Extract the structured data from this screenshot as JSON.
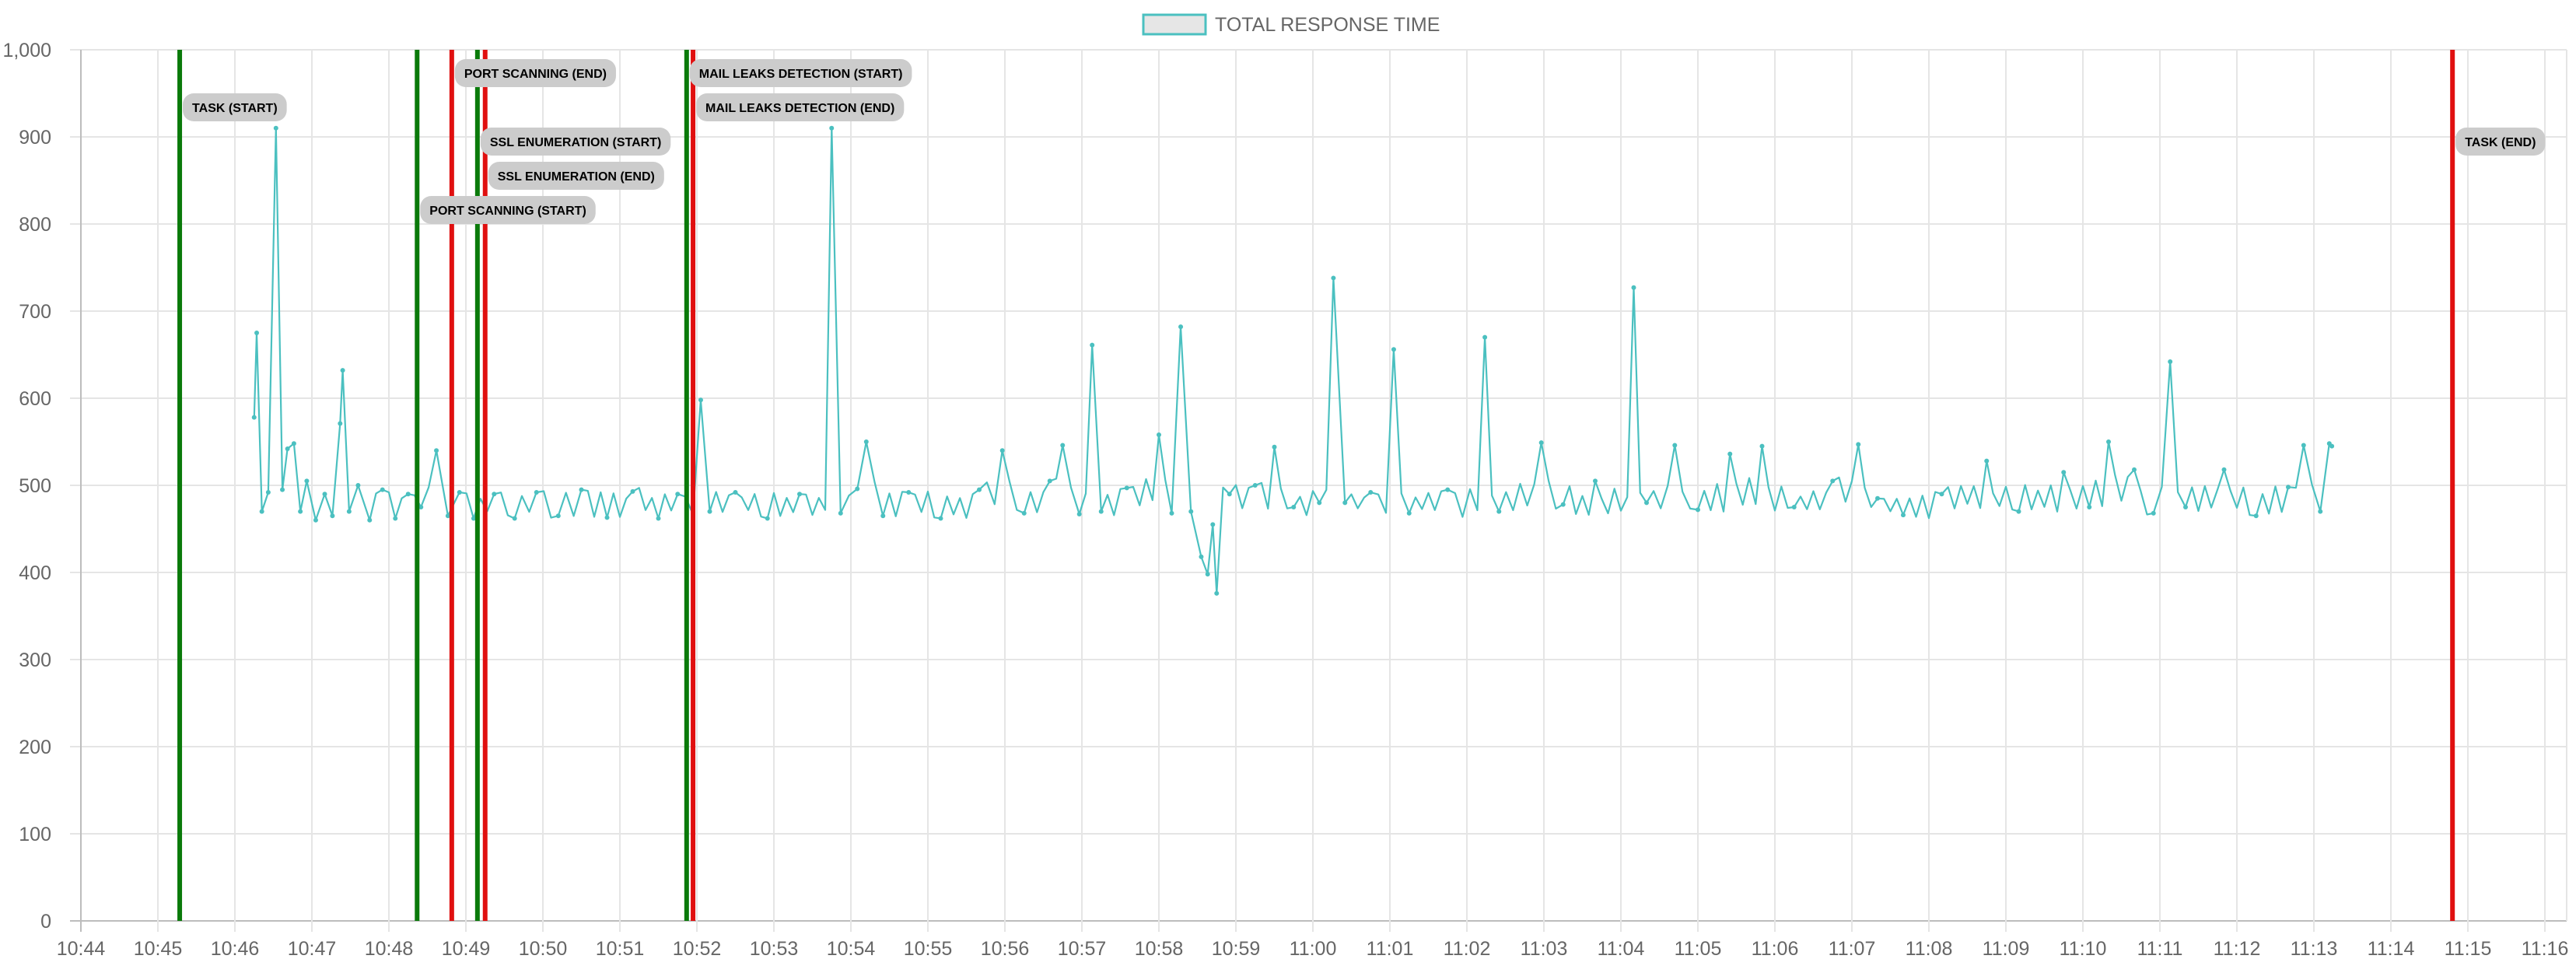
{
  "chart_data": {
    "type": "line",
    "legend": {
      "position": "top",
      "series_name": "TOTAL RESPONSE TIME"
    },
    "colors": {
      "series_line": "#4bc0c0",
      "legend_fill": "#e6e6e6",
      "grid": "#e5e5e5",
      "start_marker": "#0a7a0a",
      "end_marker": "#e01010",
      "annotation_bg": "#cccccc"
    },
    "grid": true,
    "ylim": [
      0,
      1000
    ],
    "y_ticks": [
      "0",
      "100",
      "200",
      "300",
      "400",
      "500",
      "600",
      "700",
      "800",
      "900",
      "1,000"
    ],
    "x_ticks": [
      "10:44",
      "10:45",
      "10:46",
      "10:47",
      "10:48",
      "10:49",
      "10:50",
      "10:51",
      "10:52",
      "10:53",
      "10:54",
      "10:55",
      "10:56",
      "10:57",
      "10:58",
      "10:59",
      "11:00",
      "11:01",
      "11:02",
      "11:03",
      "11:04",
      "11:05",
      "11:06",
      "11:07",
      "11:08",
      "11:09",
      "11:10",
      "11:11",
      "11:12",
      "11:13",
      "11:14",
      "11:15",
      "11:16"
    ],
    "annotations": [
      {
        "label": "TASK (START)",
        "time": "10:45:17",
        "kind": "start",
        "level": 1
      },
      {
        "label": "PORT SCANNING (START)",
        "time": "10:48:22",
        "kind": "start",
        "level": 5
      },
      {
        "label": "PORT SCANNING (END)",
        "time": "10:48:49",
        "kind": "end",
        "level": 0
      },
      {
        "label": "SSL ENUMERATION (START)",
        "time": "10:49:09",
        "kind": "start",
        "level": 2
      },
      {
        "label": "SSL ENUMERATION (END)",
        "time": "10:49:15",
        "kind": "end",
        "level": 3
      },
      {
        "label": "MAIL LEAKS DETECTION (START)",
        "time": "10:51:52",
        "kind": "start",
        "level": 0
      },
      {
        "label": "MAIL LEAKS DETECTION (END)",
        "time": "10:51:57",
        "kind": "end",
        "level": 1
      },
      {
        "label": "TASK (END)",
        "time": "11:14:48",
        "kind": "end",
        "level": 2
      }
    ],
    "series": [
      {
        "name": "TOTAL RESPONSE TIME",
        "points": [
          [
            "10:46:15",
            578
          ],
          [
            "10:46:17",
            675
          ],
          [
            "10:46:21",
            470
          ],
          [
            "10:46:26",
            492
          ],
          [
            "10:46:32",
            910
          ],
          [
            "10:46:37",
            495
          ],
          [
            "10:46:41",
            542
          ],
          [
            "10:46:46",
            548
          ],
          [
            "10:46:51",
            470
          ],
          [
            "10:46:56",
            505
          ],
          [
            "10:47:03",
            460
          ],
          [
            "10:47:10",
            490
          ],
          [
            "10:47:16",
            465
          ],
          [
            "10:47:22",
            571
          ],
          [
            "10:47:24",
            632
          ],
          [
            "10:47:29",
            470
          ],
          [
            "10:47:36",
            500
          ],
          [
            "10:47:45",
            460
          ],
          [
            "10:47:55",
            495
          ],
          [
            "10:48:05",
            462
          ],
          [
            "10:48:15",
            490
          ],
          [
            "10:48:25",
            475
          ],
          [
            "10:48:37",
            540
          ],
          [
            "10:48:46",
            465
          ],
          [
            "10:48:55",
            492
          ],
          [
            "10:49:06",
            462
          ],
          [
            "10:49:22",
            490
          ],
          [
            "10:49:38",
            462
          ],
          [
            "10:49:55",
            492
          ],
          [
            "10:50:12",
            465
          ],
          [
            "10:50:30",
            495
          ],
          [
            "10:50:50",
            463
          ],
          [
            "10:51:10",
            493
          ],
          [
            "10:51:30",
            462
          ],
          [
            "10:51:45",
            490
          ],
          [
            "10:52:03",
            598
          ],
          [
            "10:52:10",
            470
          ],
          [
            "10:52:30",
            492
          ],
          [
            "10:52:55",
            462
          ],
          [
            "10:53:20",
            490
          ],
          [
            "10:53:45",
            910
          ],
          [
            "10:53:52",
            468
          ],
          [
            "10:54:05",
            496
          ],
          [
            "10:54:12",
            550
          ],
          [
            "10:54:25",
            465
          ],
          [
            "10:54:45",
            492
          ],
          [
            "10:55:10",
            462
          ],
          [
            "10:55:40",
            495
          ],
          [
            "10:55:58",
            540
          ],
          [
            "10:56:15",
            468
          ],
          [
            "10:56:35",
            505
          ],
          [
            "10:56:45",
            546
          ],
          [
            "10:56:58",
            467
          ],
          [
            "10:57:08",
            661
          ],
          [
            "10:57:15",
            470
          ],
          [
            "10:57:35",
            497
          ],
          [
            "10:58:00",
            558
          ],
          [
            "10:58:10",
            468
          ],
          [
            "10:58:17",
            682
          ],
          [
            "10:58:25",
            470
          ],
          [
            "10:58:33",
            418
          ],
          [
            "10:58:38",
            398
          ],
          [
            "10:58:42",
            455
          ],
          [
            "10:58:45",
            376
          ],
          [
            "10:58:55",
            490
          ],
          [
            "10:59:15",
            500
          ],
          [
            "10:59:30",
            544
          ],
          [
            "10:59:45",
            475
          ],
          [
            "11:00:05",
            480
          ],
          [
            "11:00:16",
            738
          ],
          [
            "11:00:25",
            480
          ],
          [
            "11:00:45",
            492
          ],
          [
            "11:01:03",
            656
          ],
          [
            "11:01:15",
            468
          ],
          [
            "11:01:45",
            495
          ],
          [
            "11:02:14",
            670
          ],
          [
            "11:02:25",
            470
          ],
          [
            "11:02:58",
            549
          ],
          [
            "11:03:15",
            478
          ],
          [
            "11:03:40",
            505
          ],
          [
            "11:04:10",
            727
          ],
          [
            "11:04:20",
            480
          ],
          [
            "11:04:42",
            546
          ],
          [
            "11:05:00",
            472
          ],
          [
            "11:05:25",
            536
          ],
          [
            "11:05:50",
            545
          ],
          [
            "11:06:15",
            475
          ],
          [
            "11:06:45",
            505
          ],
          [
            "11:07:05",
            547
          ],
          [
            "11:07:20",
            485
          ],
          [
            "11:07:40",
            466
          ],
          [
            "11:08:10",
            490
          ],
          [
            "11:08:45",
            528
          ],
          [
            "11:09:10",
            470
          ],
          [
            "11:09:45",
            515
          ],
          [
            "11:10:05",
            475
          ],
          [
            "11:10:20",
            550
          ],
          [
            "11:10:40",
            518
          ],
          [
            "11:10:55",
            468
          ],
          [
            "11:11:08",
            642
          ],
          [
            "11:11:20",
            475
          ],
          [
            "11:11:50",
            518
          ],
          [
            "11:12:15",
            465
          ],
          [
            "11:12:40",
            498
          ],
          [
            "11:12:52",
            546
          ],
          [
            "11:13:05",
            470
          ],
          [
            "11:13:12",
            548
          ],
          [
            "11:13:14",
            545
          ]
        ]
      }
    ]
  }
}
